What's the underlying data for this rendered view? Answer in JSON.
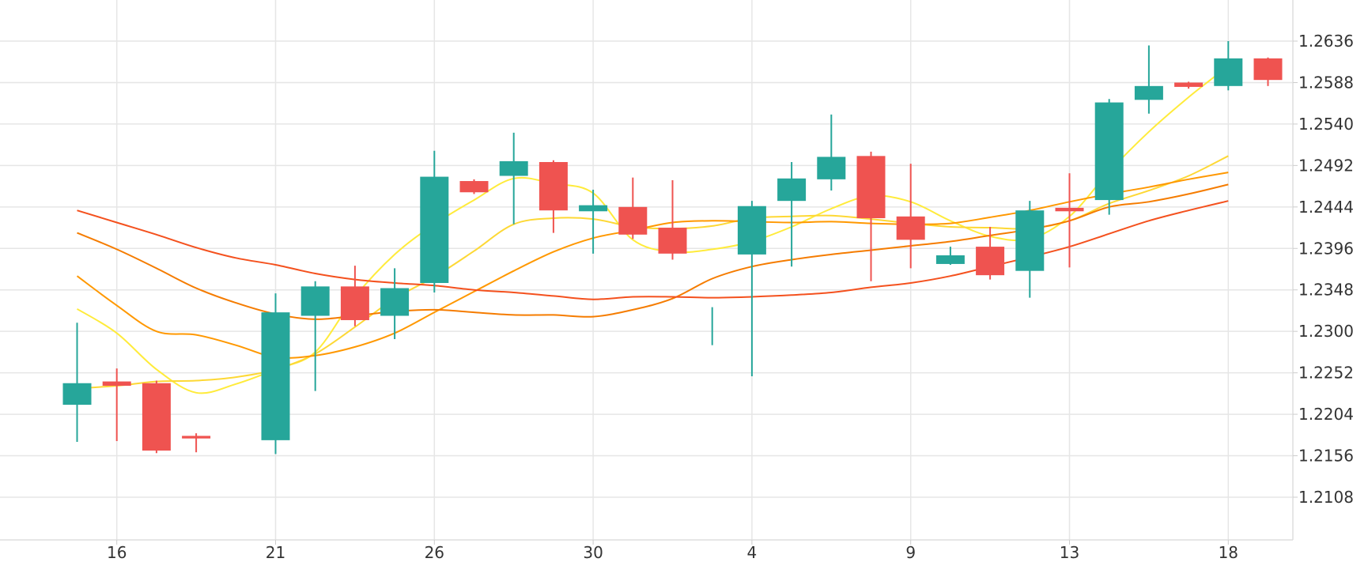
{
  "chart_data": {
    "type": "candlestick",
    "y_axis": {
      "position": "right",
      "ticks": [
        "1.2636",
        "1.2588",
        "1.2540",
        "1.2492",
        "1.2444",
        "1.2396",
        "1.2348",
        "1.2300",
        "1.2252",
        "1.2204",
        "1.2156",
        "1.2108"
      ],
      "range": [
        1.206,
        1.2684
      ]
    },
    "x_axis": {
      "ticks": [
        {
          "label": "16",
          "index": 1
        },
        {
          "label": "21",
          "index": 5
        },
        {
          "label": "26",
          "index": 9
        },
        {
          "label": "30",
          "index": 13
        },
        {
          "label": "4",
          "index": 17
        },
        {
          "label": "9",
          "index": 21
        },
        {
          "label": "13",
          "index": 25
        },
        {
          "label": "18",
          "index": 29
        }
      ]
    },
    "grid": true,
    "colors": {
      "up": "#26a69a",
      "down": "#ef5350",
      "grid": "#e6e6e6",
      "axis_text": "#333333"
    },
    "candles": [
      {
        "o": 1.2215,
        "h": 1.231,
        "l": 1.2172,
        "c": 1.224
      },
      {
        "o": 1.2242,
        "h": 1.2257,
        "l": 1.2173,
        "c": 1.2237
      },
      {
        "o": 1.224,
        "h": 1.2243,
        "l": 1.2159,
        "c": 1.2162
      },
      {
        "o": 1.2179,
        "h": 1.2182,
        "l": 1.216,
        "c": 1.2176
      },
      null,
      {
        "o": 1.2174,
        "h": 1.2344,
        "l": 1.2158,
        "c": 1.2322
      },
      {
        "o": 1.2318,
        "h": 1.2358,
        "l": 1.2231,
        "c": 1.2352
      },
      {
        "o": 1.2352,
        "h": 1.2376,
        "l": 1.2306,
        "c": 1.2313
      },
      {
        "o": 1.2318,
        "h": 1.2373,
        "l": 1.2291,
        "c": 1.235
      },
      {
        "o": 1.2356,
        "h": 1.2509,
        "l": 1.2345,
        "c": 1.2479
      },
      {
        "o": 1.2474,
        "h": 1.2476,
        "l": 1.2459,
        "c": 1.2461
      },
      {
        "o": 1.248,
        "h": 1.253,
        "l": 1.2424,
        "c": 1.2497
      },
      {
        "o": 1.2496,
        "h": 1.2498,
        "l": 1.2414,
        "c": 1.244
      },
      {
        "o": 1.2439,
        "h": 1.2464,
        "l": 1.239,
        "c": 1.2446
      },
      {
        "o": 1.2444,
        "h": 1.2478,
        "l": 1.2407,
        "c": 1.2412
      },
      {
        "o": 1.242,
        "h": 1.2475,
        "l": 1.2383,
        "c": 1.239
      },
      {
        "o": 1.2328,
        "h": 1.2328,
        "l": 1.2284,
        "c": 1.2328
      },
      {
        "o": 1.2389,
        "h": 1.2451,
        "l": 1.2248,
        "c": 1.2445
      },
      {
        "o": 1.2451,
        "h": 1.2496,
        "l": 1.2375,
        "c": 1.2477
      },
      {
        "o": 1.2476,
        "h": 1.2551,
        "l": 1.2463,
        "c": 1.2502
      },
      {
        "o": 1.2503,
        "h": 1.2508,
        "l": 1.2358,
        "c": 1.2431
      },
      {
        "o": 1.2433,
        "h": 1.2494,
        "l": 1.2373,
        "c": 1.2406
      },
      {
        "o": 1.2378,
        "h": 1.2398,
        "l": 1.2377,
        "c": 1.2388
      },
      {
        "o": 1.2398,
        "h": 1.2421,
        "l": 1.236,
        "c": 1.2365
      },
      {
        "o": 1.237,
        "h": 1.2451,
        "l": 1.2339,
        "c": 1.244
      },
      {
        "o": 1.2443,
        "h": 1.2483,
        "l": 1.2374,
        "c": 1.2439
      },
      {
        "o": 1.2452,
        "h": 1.2569,
        "l": 1.2435,
        "c": 1.2565
      },
      {
        "o": 1.2568,
        "h": 1.2631,
        "l": 1.2552,
        "c": 1.2584
      },
      {
        "o": 1.2588,
        "h": 1.2589,
        "l": 1.2581,
        "c": 1.2583
      },
      {
        "o": 1.2584,
        "h": 1.2636,
        "l": 1.2579,
        "c": 1.2616
      },
      {
        "o": 1.2616,
        "h": 1.2617,
        "l": 1.2584,
        "c": 1.2591
      }
    ],
    "moving_averages": [
      {
        "color": "#ffeb3b",
        "values": [
          1.2326,
          1.2298,
          1.2256,
          1.2229,
          1.2239,
          1.2256,
          1.2276,
          1.234,
          1.2389,
          1.2424,
          1.2452,
          1.2477,
          1.2471,
          1.246,
          1.2406,
          1.2392,
          1.2395,
          1.2404,
          1.2421,
          1.2442,
          1.2457,
          1.245,
          1.2428,
          1.241,
          1.2407,
          1.2433,
          1.2485,
          1.2531,
          1.2571,
          1.2607
        ]
      },
      {
        "color": "#fdd835",
        "values": [
          1.2234,
          1.2237,
          1.2242,
          1.2243,
          1.2247,
          1.2256,
          1.2274,
          1.2305,
          1.2338,
          1.2363,
          1.2393,
          1.2424,
          1.2431,
          1.243,
          1.2421,
          1.2419,
          1.2422,
          1.2431,
          1.2433,
          1.2434,
          1.243,
          1.2425,
          1.2421,
          1.242,
          1.2419,
          1.2428,
          1.2448,
          1.2463,
          1.248,
          1.2503
        ]
      },
      {
        "color": "#ff9800",
        "values": [
          1.2364,
          1.233,
          1.23,
          1.2296,
          1.2284,
          1.227,
          1.2272,
          1.2282,
          1.2298,
          1.2322,
          1.2346,
          1.237,
          1.2392,
          1.2408,
          1.2417,
          1.2426,
          1.2428,
          1.2427,
          1.2426,
          1.2427,
          1.2425,
          1.2424,
          1.2425,
          1.2432,
          1.244,
          1.245,
          1.2459,
          1.2467,
          1.2476,
          1.2484
        ]
      },
      {
        "color": "#f57c00",
        "values": [
          1.2414,
          1.2395,
          1.2373,
          1.235,
          1.2333,
          1.232,
          1.2314,
          1.2318,
          1.2323,
          1.2325,
          1.2322,
          1.2319,
          1.2319,
          1.2317,
          1.2325,
          1.2338,
          1.2361,
          1.2375,
          1.2383,
          1.2389,
          1.2394,
          1.2399,
          1.2404,
          1.2411,
          1.2418,
          1.2428,
          1.2444,
          1.245,
          1.2459,
          1.247
        ]
      },
      {
        "color": "#f4511e",
        "values": [
          1.244,
          1.2426,
          1.2412,
          1.2397,
          1.2385,
          1.2377,
          1.2367,
          1.236,
          1.2356,
          1.2353,
          1.2348,
          1.2345,
          1.2341,
          1.2337,
          1.234,
          1.234,
          1.2339,
          1.234,
          1.2342,
          1.2345,
          1.2351,
          1.2356,
          1.2364,
          1.2375,
          1.2386,
          1.2398,
          1.2413,
          1.2428,
          1.244,
          1.2451
        ]
      }
    ]
  }
}
